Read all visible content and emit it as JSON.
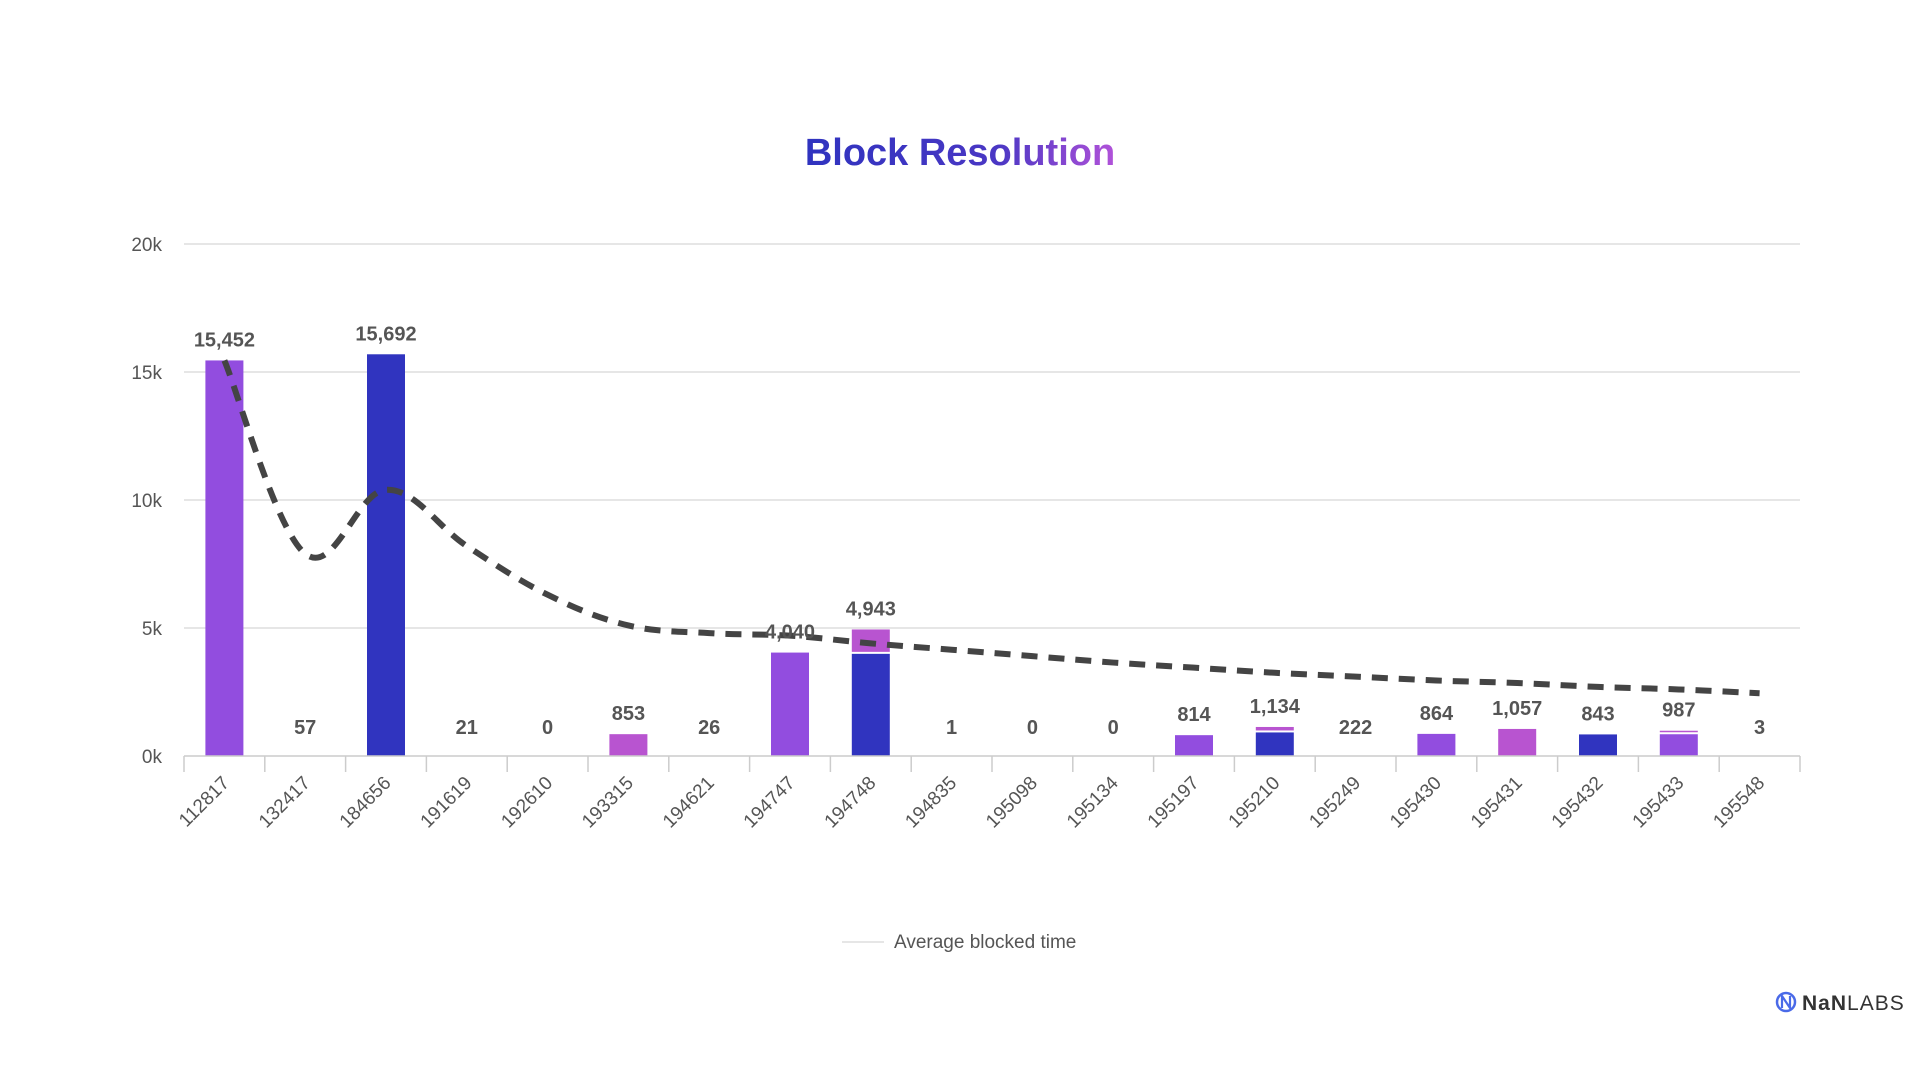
{
  "colors": {
    "purple": "#924ddf",
    "blue": "#3034bf",
    "magenta": "#b854d0",
    "line": "#444444",
    "grid": "#dddddd",
    "axis": "#cccccc",
    "title_start": "#2f33bf",
    "title_end": "#b152d9",
    "brand_icon": "#4a6ae8"
  },
  "brand": {
    "name_prefix": "NaN",
    "name_suffix": "LABS",
    "icon": "nanlabs-logo-icon"
  },
  "chart_data": {
    "type": "bar",
    "title": "Block Resolution",
    "xlabel": "",
    "ylabel": "",
    "ylim": [
      0,
      20000
    ],
    "yticks": [
      {
        "value": 0,
        "label": "0k"
      },
      {
        "value": 5000,
        "label": "5k"
      },
      {
        "value": 10000,
        "label": "10k"
      },
      {
        "value": 15000,
        "label": "15k"
      },
      {
        "value": 20000,
        "label": "20k"
      }
    ],
    "grid": true,
    "legend": {
      "position": "bottom-center",
      "entries": [
        "Average blocked time"
      ]
    },
    "categories": [
      "112817",
      "132417",
      "184656",
      "191619",
      "192610",
      "193315",
      "194621",
      "194747",
      "194748",
      "194835",
      "195098",
      "195134",
      "195197",
      "195210",
      "195249",
      "195430",
      "195431",
      "195432",
      "195433",
      "195548"
    ],
    "series": [
      {
        "type": "bar",
        "color": "purple",
        "values": [
          15452,
          0,
          0,
          0,
          0,
          0,
          0,
          4040,
          0,
          0,
          0,
          0,
          814,
          0,
          0,
          864,
          0,
          0,
          850,
          0
        ]
      },
      {
        "type": "bar",
        "color": "blue",
        "values": [
          0,
          0,
          15692,
          0,
          0,
          0,
          0,
          0,
          3990,
          0,
          0,
          0,
          0,
          920,
          0,
          0,
          0,
          843,
          0,
          0
        ]
      },
      {
        "type": "bar",
        "color": "magenta",
        "values": [
          0,
          0,
          0,
          0,
          0,
          853,
          0,
          0,
          953,
          0,
          0,
          0,
          0,
          214,
          0,
          0,
          1057,
          0,
          137,
          0
        ]
      },
      {
        "type": "line",
        "name": "Average blocked time",
        "style": "dashed",
        "color": "line",
        "values": [
          15452,
          7900,
          10400,
          8200,
          6300,
          5100,
          4800,
          4700,
          4400,
          4150,
          3900,
          3650,
          3450,
          3250,
          3100,
          2950,
          2850,
          2700,
          2600,
          2450
        ]
      }
    ],
    "totals": [
      15452,
      57,
      15692,
      21,
      0,
      853,
      26,
      4040,
      4943,
      1,
      0,
      0,
      814,
      1134,
      222,
      864,
      1057,
      843,
      987,
      3
    ],
    "data_labels": [
      "15,452",
      "57",
      "15,692",
      "21",
      "0",
      "853",
      "26",
      "4,040",
      "4,943",
      "1",
      "0",
      "0",
      "814",
      "1,134",
      "222",
      "864",
      "1,057",
      "843",
      "987",
      "3"
    ]
  }
}
